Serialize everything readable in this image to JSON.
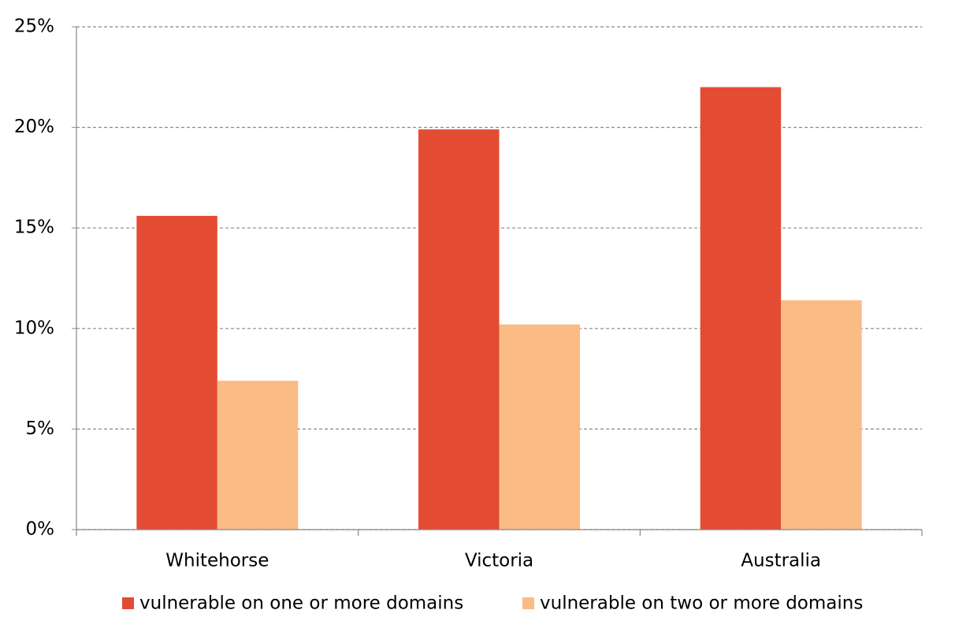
{
  "chart_data": {
    "type": "bar",
    "categories": [
      "Whitehorse",
      "Victoria",
      "Australia"
    ],
    "series": [
      {
        "name": "vulnerable on one or more domains",
        "color": "#e34c33",
        "values": [
          15.6,
          19.9,
          22.0
        ]
      },
      {
        "name": "vulnerable on two or more domains",
        "color": "#fbbb85",
        "values": [
          7.4,
          10.2,
          11.4
        ]
      }
    ],
    "ylim": [
      0,
      25
    ],
    "yticks": [
      {
        "value": 0,
        "label": "0%"
      },
      {
        "value": 5,
        "label": "5%"
      },
      {
        "value": 10,
        "label": "10%"
      },
      {
        "value": 15,
        "label": "15%"
      },
      {
        "value": 20,
        "label": "20%"
      },
      {
        "value": 25,
        "label": "25%"
      }
    ],
    "grid": true,
    "legend": "bottom"
  }
}
